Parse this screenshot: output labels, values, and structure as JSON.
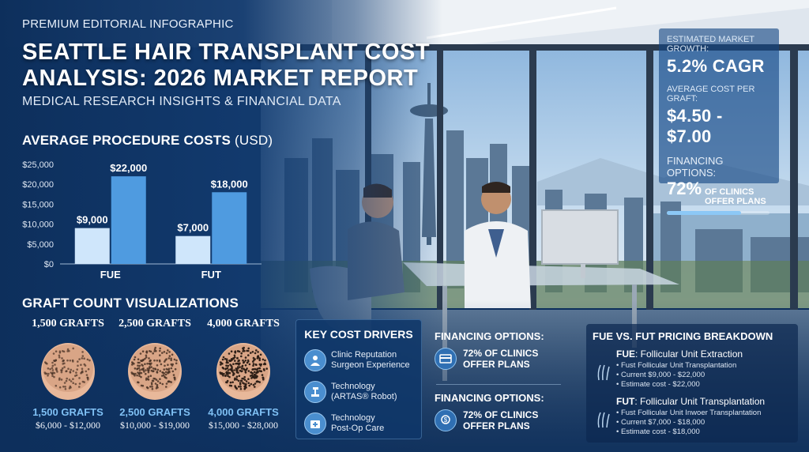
{
  "header": {
    "kicker": "PREMIUM EDITORIAL INFOGRAPHIC",
    "title_line1": "SEATTLE HAIR TRANSPLANT COST",
    "title_line2": "ANALYSIS: 2026 MARKET REPORT",
    "subtitle": "MEDICAL RESEARCH INSIGHTS & FINANCIAL DATA"
  },
  "chart_heading": {
    "bold": "AVERAGE PROCEDURE COSTS",
    "unit": "(USD)"
  },
  "chart_data": {
    "type": "bar",
    "title": "AVERAGE PROCEDURE COSTS (USD)",
    "categories": [
      "FUE",
      "FUT"
    ],
    "series": [
      {
        "values": [
          9000,
          7000
        ],
        "labels": [
          "$9,000",
          "$7,000"
        ],
        "color": "#cfe6fb"
      },
      {
        "values": [
          22000,
          18000
        ],
        "labels": [
          "$22,000",
          "$18,000"
        ],
        "color": "#4f9be0"
      }
    ],
    "ylim": [
      0,
      25000
    ],
    "yticks": [
      "$0",
      "$5,000",
      "$10,000",
      "$15,000",
      "$20,000",
      "$25,000"
    ],
    "grid": false
  },
  "grafts": {
    "heading": "GRAFT COUNT VISUALIZATIONS",
    "cards": [
      {
        "top": "1,500 GRAFTS",
        "label": "1,500 GRAFTS",
        "price": "$6,000 - $12,000",
        "density": 0.35
      },
      {
        "top": "2,500 GRAFTS",
        "label": "2,500 GRAFTS",
        "price": "$10,000 - $19,000",
        "density": 0.65
      },
      {
        "top": "4,000 GRAFTS",
        "label": "4,000 GRAFTS",
        "price": "$15,000 - $28,000",
        "density": 0.95
      }
    ]
  },
  "drivers": {
    "title": "KEY COST DRIVERS",
    "items": [
      {
        "icon": "doctor-icon",
        "line1": "Clinic Reputation",
        "line2": "Surgeon Experience"
      },
      {
        "icon": "robot-arm-icon",
        "line1": "Technology",
        "line2": "(ARTAS® Robot)"
      },
      {
        "icon": "medical-kit-icon",
        "line1": "Technology",
        "line2": "Post-Op Care"
      }
    ]
  },
  "financing_panels": [
    {
      "title": "FINANCING OPTIONS:",
      "line1": "72% OF CLINICS",
      "line2": "OFFER PLANS",
      "icon": "payment-card-icon"
    },
    {
      "title": "FINANCING OPTIONS:",
      "line1": "72% OF CLINICS",
      "line2": "OFFER PLANS",
      "icon": "dollar-hand-icon"
    }
  ],
  "breakdown": {
    "title": "FUE VS. FUT PRICING BREAKDOWN",
    "blocks": [
      {
        "abbr": "FUE",
        "name": ": Follicular Unit Extraction",
        "items": [
          "• Fust Follicular Unit Transplantation",
          "• Current $9,000 - $22,000",
          "• Estimate cost - $22,000"
        ]
      },
      {
        "abbr": "FUT",
        "name": ": Follicular Unit Transplantation",
        "items": [
          "• Fust Follicular Unit Inwoer Transplantation",
          "• Current $7,000 - $18,000",
          "• Estimate cost - $18,000"
        ]
      }
    ]
  },
  "stats": {
    "growth_label": "ESTIMATED MARKET GROWTH:",
    "growth_value": "5.2% CAGR",
    "graft_label": "AVERAGE COST PER GRAFT:",
    "graft_value": "$4.50 - $7.00",
    "fin_label": "FINANCING OPTIONS:",
    "fin_pct": "72%",
    "fin_line1": "OF CLINICS",
    "fin_line2": "OFFER PLANS",
    "fin_progress": 0.72
  },
  "colors": {
    "navy": "#0d2f5c",
    "panel": "#0f3769",
    "accent_light": "#cfe6fb",
    "accent": "#4f9be0",
    "graft_label": "#7fc0f4"
  }
}
